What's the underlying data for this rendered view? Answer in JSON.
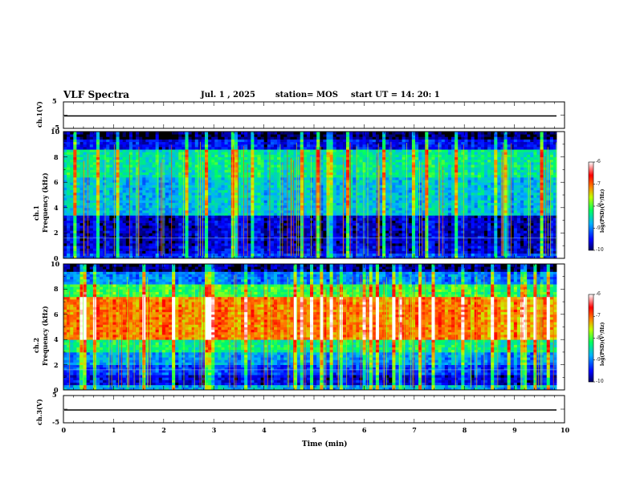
{
  "header": {
    "title": "VLF Spectra",
    "date": "Jul.  1  , 2025",
    "station": "station= MOS",
    "start": "start  UT  =   14: 20: 1"
  },
  "chart_data": [
    {
      "type": "line",
      "name": "ch1-voltage",
      "ylabel": "ch.1(V)",
      "ylim": [
        -5,
        5
      ],
      "yticks": [
        "5",
        "-5"
      ],
      "baseline": 0
    },
    {
      "type": "heatmap",
      "name": "ch1-spectrogram",
      "ylabel": "ch.1\nFrequency (kHz)",
      "ylabel_lines": [
        "ch.1",
        "Frequency (kHz)"
      ],
      "ylim": [
        0,
        10
      ],
      "yticks": [
        "0",
        "2",
        "4",
        "6",
        "8",
        "10"
      ],
      "xlim": [
        0,
        10
      ],
      "colorbar": {
        "label": "log(PSD)(V²/Hz)",
        "ticks": [
          "-6",
          "-7",
          "-8",
          "-9",
          "-10"
        ],
        "range": [
          -10,
          -6
        ]
      },
      "bands": [
        {
          "f0": 0.0,
          "f1": 0.4,
          "level": -9.3
        },
        {
          "f0": 0.4,
          "f1": 1.0,
          "level": -9.6
        },
        {
          "f0": 1.0,
          "f1": 3.5,
          "level": -9.7
        },
        {
          "f0": 3.5,
          "f1": 6.5,
          "level": -8.7
        },
        {
          "f0": 6.5,
          "f1": 8.7,
          "level": -8.4
        },
        {
          "f0": 8.7,
          "f1": 9.5,
          "level": -9.5
        },
        {
          "f0": 9.5,
          "f1": 10.0,
          "level": -10.0
        }
      ]
    },
    {
      "type": "heatmap",
      "name": "ch2-spectrogram",
      "ylabel": "ch.2\nFrequency (kHz)",
      "ylabel_lines": [
        "ch.2",
        "Frequency (kHz)"
      ],
      "ylim": [
        0,
        10
      ],
      "yticks": [
        "0",
        "2",
        "4",
        "6",
        "8",
        "10"
      ],
      "xlim": [
        0,
        10
      ],
      "colorbar": {
        "label": "log(PSD)(V²/Hz)",
        "ticks": [
          "-6",
          "-7",
          "-8",
          "-9",
          "-10"
        ],
        "range": [
          -10,
          -6
        ]
      },
      "bands": [
        {
          "f0": 0.0,
          "f1": 0.4,
          "level": -8.8
        },
        {
          "f0": 0.4,
          "f1": 1.2,
          "level": -9.6
        },
        {
          "f0": 1.2,
          "f1": 2.0,
          "level": -9.3
        },
        {
          "f0": 2.0,
          "f1": 3.0,
          "level": -8.9
        },
        {
          "f0": 3.0,
          "f1": 4.0,
          "level": -8.3
        },
        {
          "f0": 4.0,
          "f1": 7.5,
          "level": -7.1
        },
        {
          "f0": 7.5,
          "f1": 8.5,
          "level": -8.1
        },
        {
          "f0": 8.5,
          "f1": 9.3,
          "level": -9.0
        },
        {
          "f0": 9.3,
          "f1": 10.0,
          "level": -9.9
        }
      ]
    },
    {
      "type": "line",
      "name": "ch3-voltage",
      "ylabel": "ch.3(V)",
      "ylim": [
        -5,
        5
      ],
      "yticks": [
        "5",
        "-5"
      ],
      "baseline": 0
    }
  ],
  "xaxis": {
    "label": "Time  (min)",
    "ticks": [
      "0",
      "1",
      "2",
      "3",
      "4",
      "5",
      "6",
      "7",
      "8",
      "9",
      "10"
    ],
    "xlim": [
      0,
      10
    ]
  }
}
